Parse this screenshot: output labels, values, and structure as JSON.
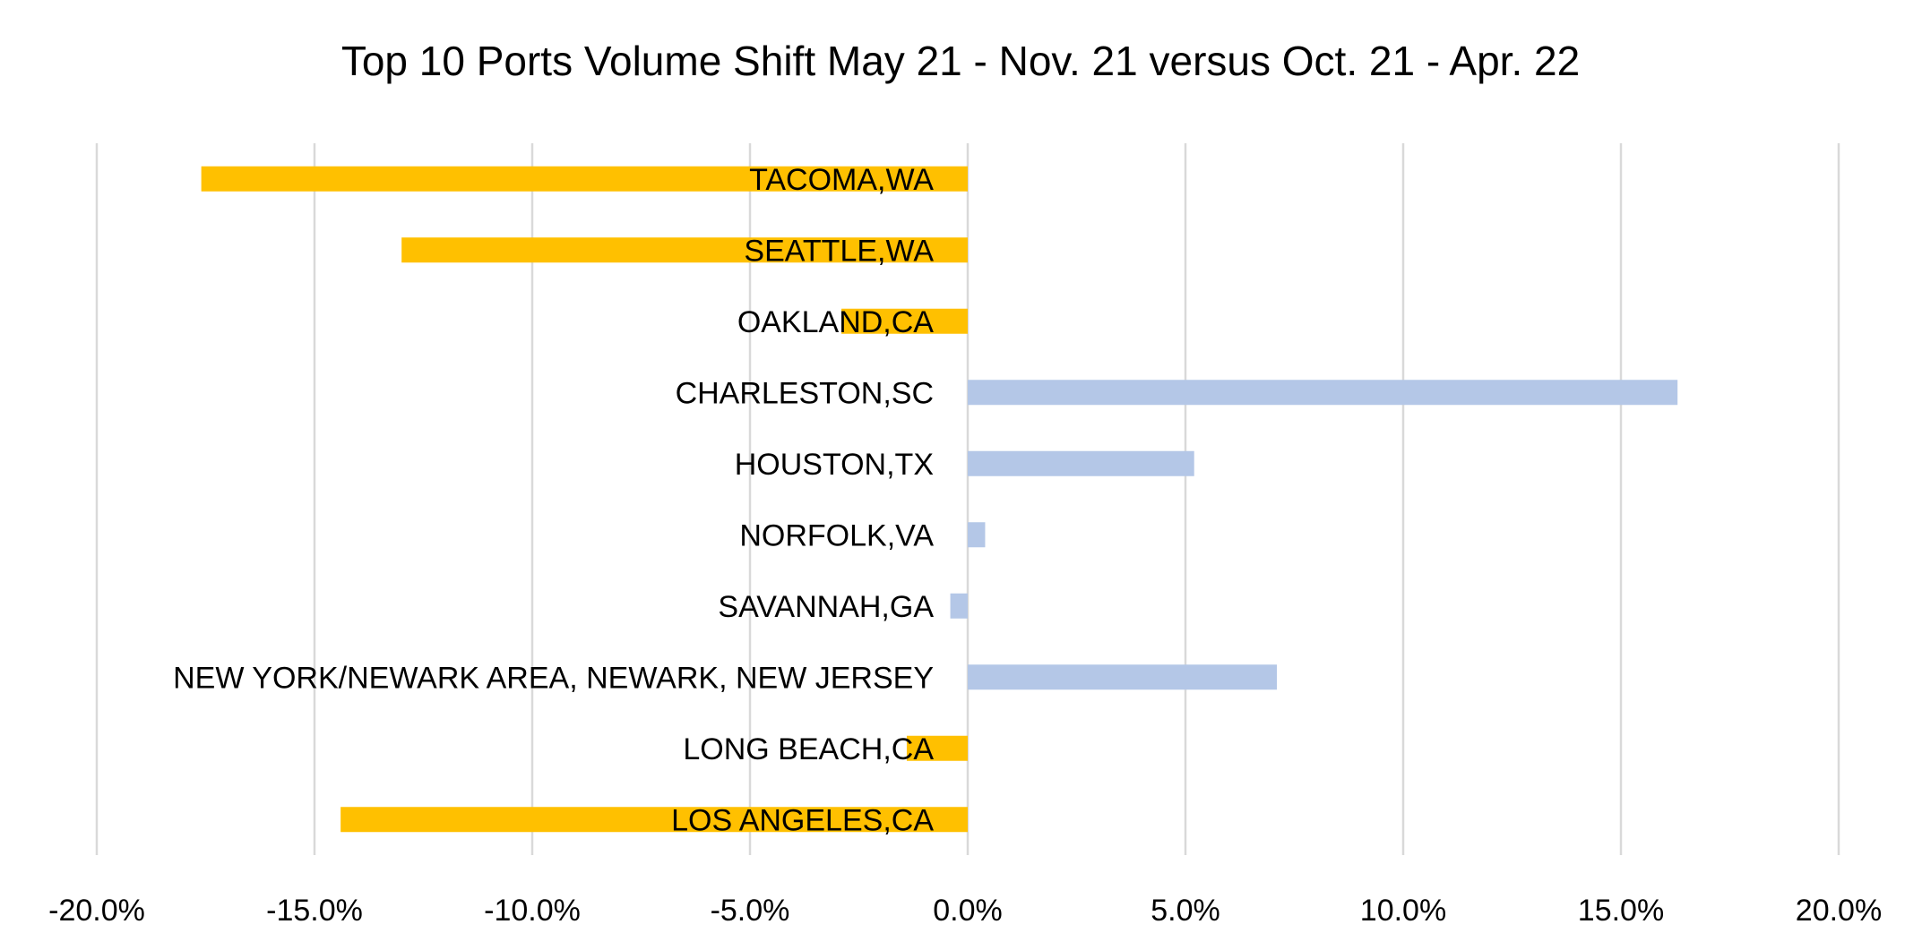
{
  "chart_data": {
    "type": "bar",
    "orientation": "horizontal",
    "title": "Top 10 Ports Volume Shift May 21 - Nov. 21 versus Oct. 21 - Apr. 22",
    "xlabel": "",
    "ylabel": "",
    "categories": [
      "TACOMA,WA",
      "SEATTLE,WA",
      "OAKLAND,CA",
      "CHARLESTON,SC",
      "HOUSTON,TX",
      "NORFOLK,VA",
      "SAVANNAH,GA",
      "NEW YORK/NEWARK AREA, NEWARK, NEW JERSEY",
      "LONG BEACH,CA",
      "LOS ANGELES,CA"
    ],
    "values": [
      -0.176,
      -0.13,
      -0.029,
      0.163,
      0.052,
      0.004,
      -0.004,
      0.071,
      -0.014,
      -0.144
    ],
    "bar_colors": [
      "#FFC000",
      "#FFC000",
      "#FFC000",
      "#B4C7E7",
      "#B4C7E7",
      "#B4C7E7",
      "#B4C7E7",
      "#B4C7E7",
      "#FFC000",
      "#FFC000"
    ],
    "xlim": [
      -0.2,
      0.2
    ],
    "x_ticks": [
      -0.2,
      -0.15,
      -0.1,
      -0.05,
      0,
      0.05,
      0.1,
      0.15,
      0.2
    ],
    "x_tick_labels": [
      "-20.0%",
      "-15.0%",
      "-10.0%",
      "-5.0%",
      "0.0%",
      "5.0%",
      "10.0%",
      "15.0%",
      "20.0%"
    ],
    "grid": "vertical",
    "legend": "none"
  }
}
